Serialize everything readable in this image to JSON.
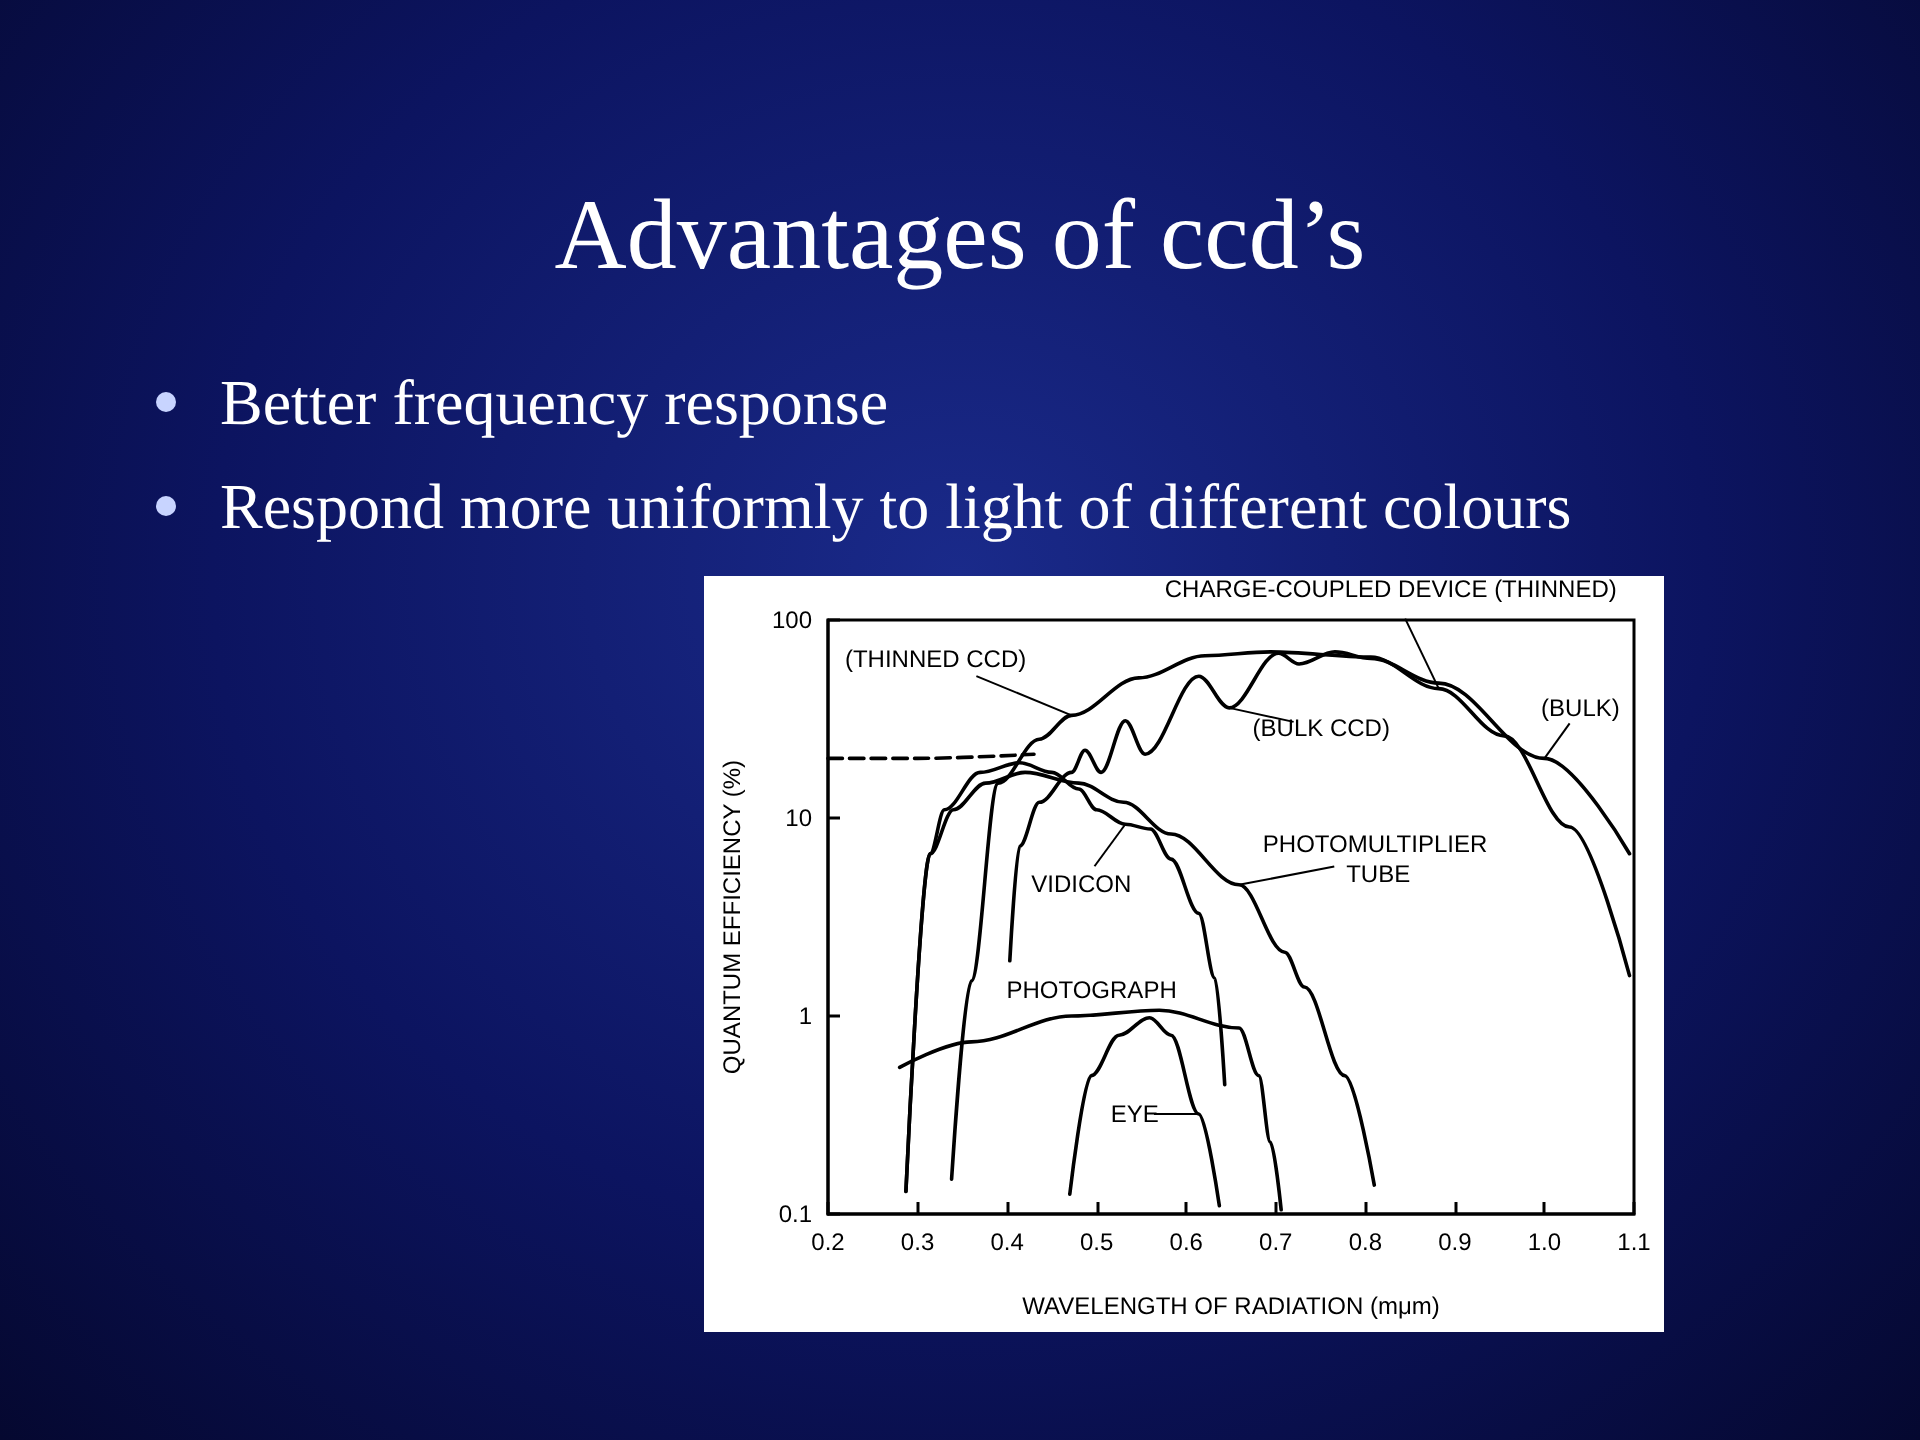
{
  "chart_data": {
    "type": "line",
    "title": "Advantages of ccd’s",
    "xlabel": "WAVELENGTH OF RADIATION (mμm)",
    "ylabel": "QUANTUM EFFICIENCY (%)",
    "annotations": [
      "Better frequency response",
      "Respond more uniformly to light of different colours",
      {
        "text": "CHARGE-COUPLED DEVICE (THINNED)",
        "x": 0.882,
        "y": 45
      },
      {
        "text": "(THINNED CCD)",
        "x": 0.472,
        "y": 33
      },
      {
        "text": "(BULK CCD)",
        "x": 0.648,
        "y": 36
      },
      {
        "text": "(BULK)",
        "x": 1.0,
        "y": 20
      },
      {
        "text": "PHOTOMULTIPLIER TUBE",
        "x": 0.659,
        "y": 4.6
      },
      {
        "text": "VIDICON",
        "x": 0.532,
        "y": 9.3
      },
      {
        "text": "PHOTOGRAPH",
        "x": 0.472,
        "y": 1.0
      },
      {
        "text": "EYE",
        "x": 0.614,
        "y": 0.32
      }
    ],
    "log": "y",
    "xlim": [
      0.2,
      1.1
    ],
    "ylim": [
      0.1,
      100
    ],
    "xticks": [
      0.2,
      0.3,
      0.4,
      0.5,
      0.6,
      0.7,
      0.8,
      0.9,
      {
        "value": 1.0,
        "label": "1.0"
      },
      1.1
    ],
    "yticks": [
      0.1,
      1,
      10,
      100
    ],
    "grid": false,
    "line_style": "solid",
    "series": [
      {
        "color": "#000000",
        "x": [
          0.338,
          0.36,
          0.39,
          0.436,
          0.472,
          0.547,
          0.621,
          0.694,
          0.806,
          0.882,
          0.955,
          1.028,
          1.095
        ],
        "values": [
          0.15,
          1.5,
          15,
          25,
          33,
          51,
          66,
          69,
          65,
          45,
          26,
          9,
          1.6
        ]
      },
      {
        "color": "#000000",
        "line_style": "dashed",
        "x": [
          0.2,
          0.3,
          0.43
        ],
        "values": [
          20,
          20,
          21
        ]
      },
      {
        "color": "#000000",
        "x": [
          0.403,
          0.414,
          0.436,
          0.472,
          0.487,
          0.505,
          0.532,
          0.554,
          0.614,
          0.648,
          0.703,
          0.726,
          0.766,
          0.806,
          0.882,
          1.0,
          1.095
        ],
        "values": [
          1.9,
          7.2,
          12,
          17,
          22,
          17,
          31,
          21,
          52,
          36,
          68,
          60,
          69,
          64,
          48,
          20,
          6.6
        ]
      },
      {
        "color": "#000000",
        "x": [
          0.287,
          0.314,
          0.33,
          0.37,
          0.414,
          0.45,
          0.48,
          0.5,
          0.532,
          0.56,
          0.583,
          0.614,
          0.632,
          0.643
        ],
        "values": [
          0.13,
          6.6,
          11,
          17,
          19,
          17,
          14,
          11,
          9.3,
          8.8,
          6.2,
          3.3,
          1.55,
          0.45
        ]
      },
      {
        "color": "#000000",
        "x": [
          0.287,
          0.314,
          0.34,
          0.376,
          0.42,
          0.48,
          0.53,
          0.583,
          0.659,
          0.71,
          0.732,
          0.777,
          0.81
        ],
        "values": [
          0.13,
          6.6,
          11,
          15,
          17,
          15,
          12,
          8.3,
          4.6,
          2.1,
          1.4,
          0.5,
          0.14
        ]
      },
      {
        "color": "#000000",
        "x": [
          0.28,
          0.36,
          0.472,
          0.57,
          0.659,
          0.681,
          0.694,
          0.706
        ],
        "values": [
          0.55,
          0.74,
          1.0,
          1.07,
          0.87,
          0.5,
          0.23,
          0.105
        ]
      },
      {
        "color": "#000000",
        "x": [
          0.47,
          0.494,
          0.525,
          0.559,
          0.583,
          0.614,
          0.637
        ],
        "values": [
          0.126,
          0.5,
          0.8,
          0.98,
          0.8,
          0.32,
          0.11
        ]
      }
    ]
  }
}
